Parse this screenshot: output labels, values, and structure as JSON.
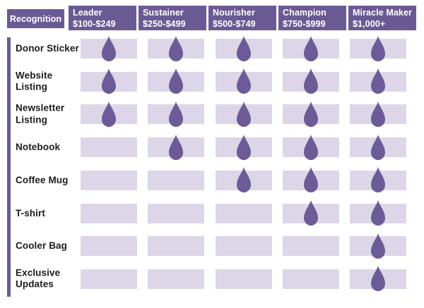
{
  "colors": {
    "accent": "#6a5a93",
    "cell_bg": "#ddd6e9",
    "drop": "#6c5b97",
    "text": "#1d1b20"
  },
  "icons": {
    "benefit_marker": "water-drop-icon"
  },
  "chart_data": {
    "type": "table",
    "title": "Recognition",
    "columns": [
      {
        "name": "Leader",
        "range": "$100-$249"
      },
      {
        "name": "Sustainer",
        "range": "$250-$499"
      },
      {
        "name": "Nourisher",
        "range": "$500-$749"
      },
      {
        "name": "Champion",
        "range": "$750-$999"
      },
      {
        "name": "Miracle Maker",
        "range": "$1,000+"
      }
    ],
    "rows": [
      {
        "label": "Donor Sticker",
        "values": [
          1,
          1,
          1,
          1,
          1
        ]
      },
      {
        "label": "Website Listing",
        "values": [
          1,
          1,
          1,
          1,
          1
        ]
      },
      {
        "label": "Newsletter Listing",
        "values": [
          1,
          1,
          1,
          1,
          1
        ]
      },
      {
        "label": "Notebook",
        "values": [
          0,
          1,
          1,
          1,
          1
        ]
      },
      {
        "label": "Coffee Mug",
        "values": [
          0,
          0,
          1,
          1,
          1
        ]
      },
      {
        "label": "T-shirt",
        "values": [
          0,
          0,
          0,
          1,
          1
        ]
      },
      {
        "label": "Cooler Bag",
        "values": [
          0,
          0,
          0,
          0,
          1
        ]
      },
      {
        "label": "Exclusive Updates",
        "values": [
          0,
          0,
          0,
          0,
          1
        ]
      }
    ],
    "marker_meaning": "drop icon = benefit included at tier"
  }
}
